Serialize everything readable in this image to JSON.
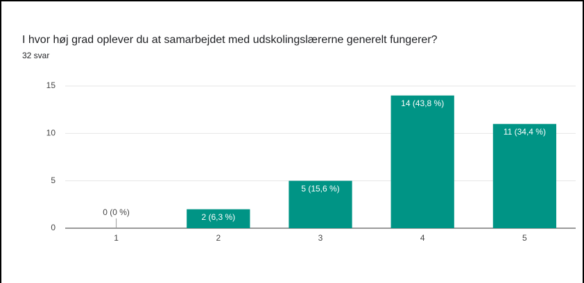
{
  "chart_data": {
    "type": "bar",
    "title": "I hvor høj grad oplever du at samarbejdet med udskolingslærerne generelt fungerer?",
    "subtitle": "32 svar",
    "categories": [
      "1",
      "2",
      "3",
      "4",
      "5"
    ],
    "values": [
      0,
      2,
      5,
      14,
      11
    ],
    "value_labels": [
      "0 (0 %)",
      "2 (6,3 %)",
      "5 (15,6 %)",
      "14 (43,8 %)",
      "11 (34,4 %)"
    ],
    "color": "#009485",
    "ylim": [
      0,
      15
    ],
    "yticks": [
      0,
      5,
      10,
      15
    ],
    "grid": true
  }
}
